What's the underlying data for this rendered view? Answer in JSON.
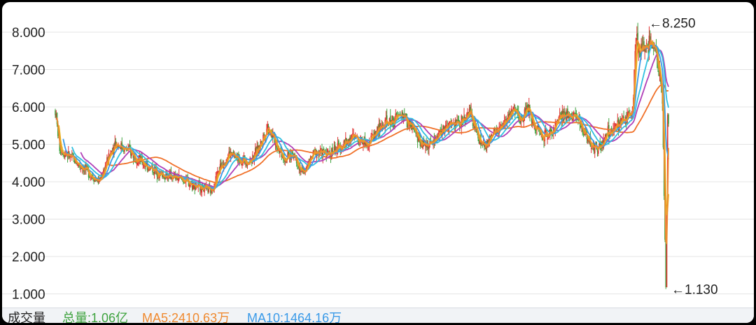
{
  "chart_data": {
    "type": "candlestick",
    "y_ticks": [
      "8.000",
      "7.000",
      "6.000",
      "5.000",
      "4.000",
      "3.000",
      "2.000",
      "1.000"
    ],
    "ylim": [
      1.0,
      8.3
    ],
    "grid": true,
    "annotations": [
      {
        "label": "←8.250",
        "value": 8.25
      },
      {
        "label": "←1.130",
        "value": 1.13
      }
    ],
    "price_path": [
      [
        0,
        5.9
      ],
      [
        5,
        4.9
      ],
      [
        15,
        4.7
      ],
      [
        35,
        4.3
      ],
      [
        50,
        4.0
      ],
      [
        60,
        4.6
      ],
      [
        68,
        5.05
      ],
      [
        85,
        4.8
      ],
      [
        100,
        4.5
      ],
      [
        120,
        4.2
      ],
      [
        140,
        4.1
      ],
      [
        160,
        3.9
      ],
      [
        178,
        3.75
      ],
      [
        188,
        4.4
      ],
      [
        198,
        4.75
      ],
      [
        210,
        4.6
      ],
      [
        222,
        4.55
      ],
      [
        232,
        4.9
      ],
      [
        242,
        5.5
      ],
      [
        252,
        5.0
      ],
      [
        262,
        4.6
      ],
      [
        272,
        4.75
      ],
      [
        282,
        4.2
      ],
      [
        296,
        4.8
      ],
      [
        312,
        4.75
      ],
      [
        326,
        4.95
      ],
      [
        340,
        5.2
      ],
      [
        356,
        5.05
      ],
      [
        370,
        5.45
      ],
      [
        385,
        5.65
      ],
      [
        396,
        5.8
      ],
      [
        406,
        5.45
      ],
      [
        418,
        5.0
      ],
      [
        428,
        5.0
      ],
      [
        440,
        5.35
      ],
      [
        450,
        5.5
      ],
      [
        462,
        5.6
      ],
      [
        472,
        5.85
      ],
      [
        482,
        5.2
      ],
      [
        490,
        4.9
      ],
      [
        498,
        5.25
      ],
      [
        510,
        5.45
      ],
      [
        520,
        5.9
      ],
      [
        530,
        5.65
      ],
      [
        538,
        6.0
      ],
      [
        546,
        5.55
      ],
      [
        556,
        5.2
      ],
      [
        566,
        5.35
      ],
      [
        576,
        5.7
      ],
      [
        590,
        5.85
      ],
      [
        604,
        5.3
      ],
      [
        614,
        4.9
      ],
      [
        622,
        4.95
      ],
      [
        630,
        5.3
      ],
      [
        645,
        5.55
      ],
      [
        658,
        5.9
      ],
      [
        662,
        7.9
      ],
      [
        668,
        7.45
      ],
      [
        678,
        7.7
      ],
      [
        685,
        7.6
      ],
      [
        692,
        6.2
      ],
      [
        696,
        1.15
      ],
      [
        698,
        5.6
      ]
    ],
    "volume": {
      "label": "成交量",
      "total": "总量:1.06亿",
      "ma5": "MA5:2410.63万",
      "ma10": "MA10:1464.16万"
    }
  },
  "colors": {
    "up": "#e03030",
    "down": "#3fa33f",
    "ma_orange": "#f08a30",
    "ma_yellow": "#e6b21a",
    "ma_blue": "#3a9ae8",
    "ma_cyan": "#30c0e0",
    "ma_purple": "#b040b8",
    "ma_long": "#f07028",
    "grid": "#e4e4e4",
    "total_text": "#3fa33f",
    "ma5_text": "#f08a30",
    "ma10_text": "#3a9ae8"
  }
}
